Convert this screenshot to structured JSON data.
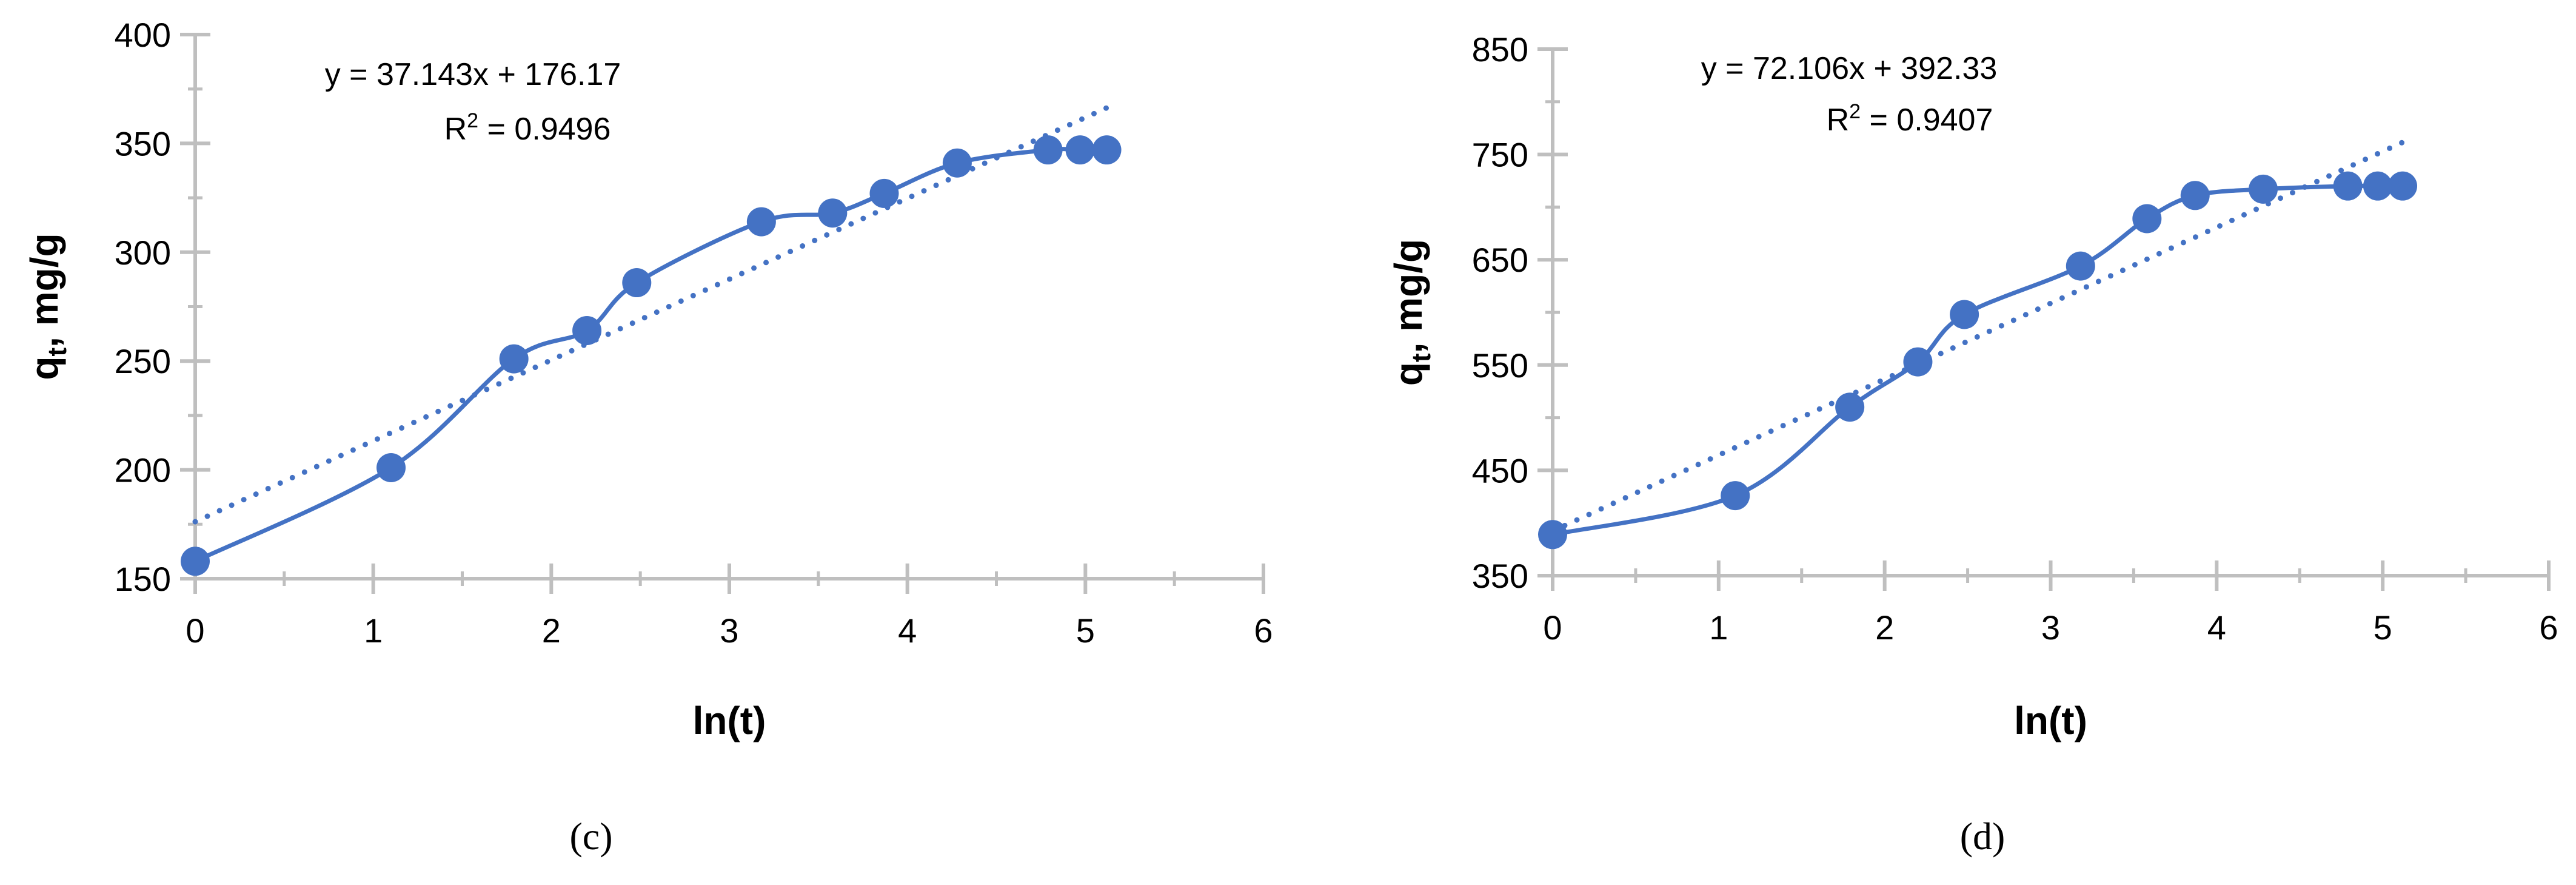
{
  "chart_data": [
    {
      "type": "line",
      "panel_label": "(c)",
      "xlabel": "ln(t)",
      "ylabel_main": "q",
      "ylabel_sub": "t",
      "ylabel_rest": ", mg/g",
      "xlim": [
        0,
        6
      ],
      "ylim": [
        150,
        400
      ],
      "xticks": [
        0,
        1,
        2,
        3,
        4,
        5,
        6
      ],
      "yticks": [
        150,
        200,
        250,
        300,
        350,
        400
      ],
      "x": [
        0,
        1.1,
        1.79,
        2.2,
        2.48,
        3.18,
        3.58,
        3.87,
        4.28,
        4.79,
        4.97,
        5.12
      ],
      "series": [
        {
          "name": "q_t",
          "values": [
            158,
            201,
            251,
            264,
            286,
            314,
            318,
            327,
            341,
            347,
            347,
            347
          ]
        }
      ],
      "trendline": {
        "slope": 37.143,
        "intercept": 176.17,
        "x_range": [
          0,
          5.12
        ]
      },
      "equation": "y = 37.143x + 176.17",
      "r2_prefix": "R",
      "r2_sup": "2",
      "r2_value": " = 0.9496",
      "color": "#4472C4"
    },
    {
      "type": "line",
      "panel_label": "(d)",
      "xlabel": "ln(t)",
      "ylabel_main": "q",
      "ylabel_sub": "t",
      "ylabel_rest": ", mg/g",
      "xlim": [
        0,
        6
      ],
      "ylim": [
        350,
        850
      ],
      "xticks": [
        0,
        1,
        2,
        3,
        4,
        5,
        6
      ],
      "yticks": [
        350,
        450,
        550,
        650,
        750,
        850
      ],
      "x": [
        0,
        1.1,
        1.79,
        2.2,
        2.48,
        3.18,
        3.58,
        3.87,
        4.28,
        4.79,
        4.97,
        5.12
      ],
      "series": [
        {
          "name": "q_t",
          "values": [
            389,
            426,
            510,
            553,
            598,
            644,
            689,
            711,
            717,
            720,
            720,
            720
          ]
        }
      ],
      "trendline": {
        "slope": 72.106,
        "intercept": 392.33,
        "x_range": [
          0,
          5.12
        ]
      },
      "equation": "y = 72.106x + 392.33",
      "r2_prefix": "R",
      "r2_sup": "2",
      "r2_value": " = 0.9407",
      "color": "#4472C4"
    }
  ]
}
